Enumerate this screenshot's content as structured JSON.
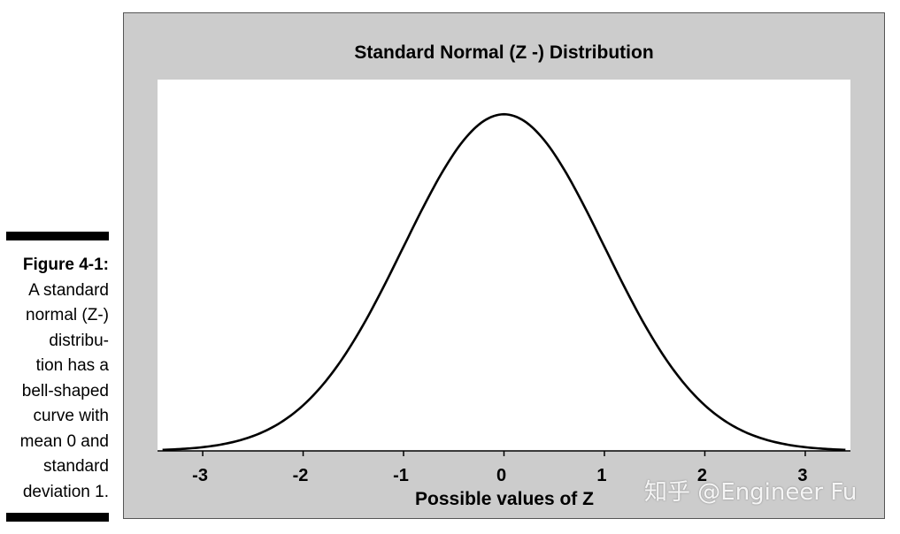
{
  "caption": {
    "figure_label": "Figure 4-1:",
    "lines": [
      "A standard",
      "normal (Z-)",
      "distribu-",
      "tion has a",
      "bell-shaped",
      "curve with",
      "mean 0 and",
      "standard",
      "deviation 1."
    ]
  },
  "chart_data": {
    "type": "line",
    "title": "Standard Normal (Z -)  Distribution",
    "xlabel": "Possible values of Z",
    "ylabel": "",
    "xlim": [
      -3.45,
      3.45
    ],
    "ylim": [
      0,
      0.44
    ],
    "x_ticks": [
      -3,
      -2,
      -1,
      0,
      1,
      2,
      3
    ],
    "x_tick_labels": [
      "-3",
      "-2",
      "-1",
      "0",
      "1",
      "2",
      "3"
    ],
    "grid": false,
    "series": [
      {
        "x": [
          -3.4,
          -3.2,
          -3.0,
          -2.8,
          -2.6,
          -2.4,
          -2.2,
          -2.0,
          -1.8,
          -1.6,
          -1.4,
          -1.2,
          -1.0,
          -0.8,
          -0.6,
          -0.4,
          -0.2,
          0.0,
          0.2,
          0.4,
          0.6,
          0.8,
          1.0,
          1.2,
          1.4,
          1.6,
          1.8,
          2.0,
          2.2,
          2.4,
          2.6,
          2.8,
          3.0,
          3.2,
          3.4
        ],
        "y": [
          0.0012,
          0.0024,
          0.0044,
          0.0079,
          0.0136,
          0.0224,
          0.0355,
          0.054,
          0.079,
          0.1109,
          0.1497,
          0.1942,
          0.242,
          0.2897,
          0.3332,
          0.3683,
          0.391,
          0.3989,
          0.391,
          0.3683,
          0.3332,
          0.2897,
          0.242,
          0.1942,
          0.1497,
          0.1109,
          0.079,
          0.054,
          0.0355,
          0.0224,
          0.0136,
          0.0079,
          0.0044,
          0.0024,
          0.0012
        ]
      }
    ],
    "line_color": "#000000"
  },
  "watermark": "知乎 @Engineer Fu"
}
